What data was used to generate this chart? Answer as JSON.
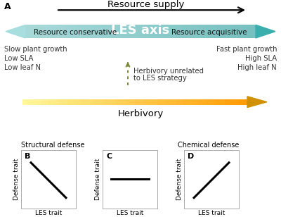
{
  "title": "A",
  "resource_supply_label": "Resource supply",
  "les_axis_label": "LES axis",
  "resource_conservative_label": "Resource conservative",
  "resource_acquisitive_label": "Resource acquisitive",
  "left_text": [
    "Slow plant growth",
    "Low SLA",
    "Low leaf N"
  ],
  "right_text": [
    "Fast plant growth",
    "High SLA",
    "High leaf N"
  ],
  "herbivory_unrelated_text": [
    "Herbivory unrelated",
    "to LES strategy"
  ],
  "herbivory_label": "Herbivory",
  "structural_defense_label": "Structural defense",
  "chemical_defense_label": "Chemical defense",
  "panel_B_label": "B",
  "panel_C_label": "C",
  "panel_D_label": "D",
  "les_trait_label": "LES trait",
  "defense_trait_label": "Defense trait",
  "teal_color": "#6ec9c9",
  "teal_left": "#a8dede",
  "teal_right": "#3aadad",
  "herb_color_left": "#f8f5a0",
  "herb_color_right": "#d09000",
  "black": "#000000",
  "gray_text": "#333333",
  "olive_arrow": "#7a8a3a",
  "background_color": "#ffffff",
  "spine_color": "#aaaaaa"
}
